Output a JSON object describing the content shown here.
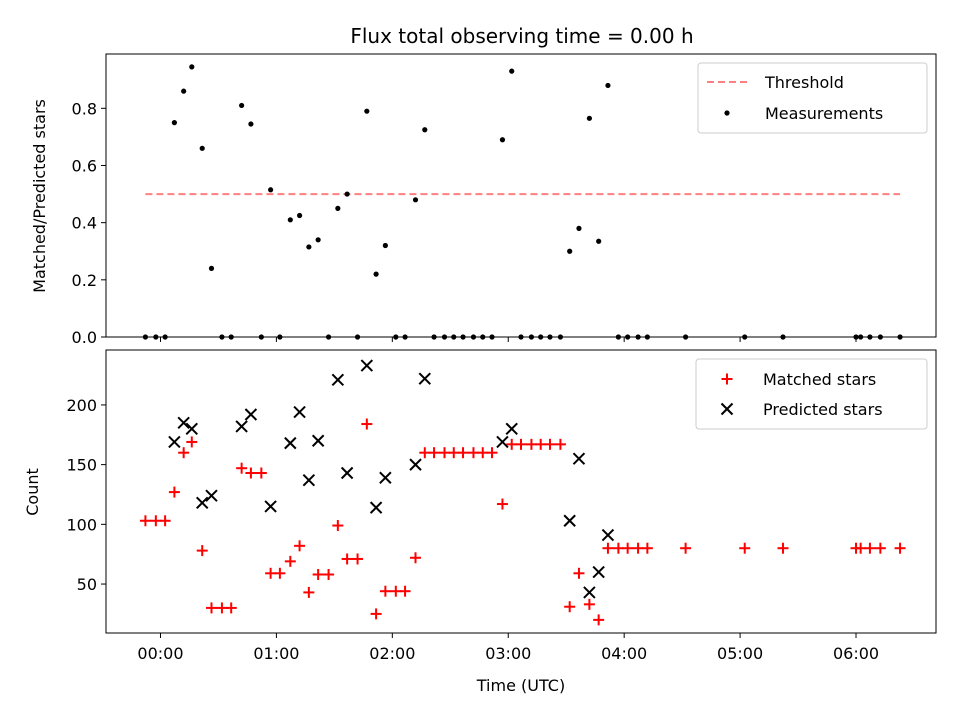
{
  "colors": {
    "threshold": "#ff8080",
    "measurement": "#000000",
    "matched": "#ff0000",
    "predicted": "#000000"
  },
  "chart_data": [
    {
      "type": "scatter",
      "title": "Flux total observing time = 0.00 h",
      "xlabel": "",
      "ylabel": "Matched/Predicted stars",
      "ylim": [
        0,
        0.99
      ],
      "xlim": [
        -0.47,
        6.69
      ],
      "yticks": [
        0.0,
        0.2,
        0.4,
        0.6,
        0.8
      ],
      "ytick_labels": [
        "0.0",
        "0.2",
        "0.4",
        "0.6",
        "0.8"
      ],
      "grid": false,
      "legend_position": "top-right",
      "legend": [
        "Threshold",
        "Measurements"
      ],
      "threshold": {
        "name": "Threshold",
        "x": [
          -0.13,
          6.38
        ],
        "y": 0.5
      },
      "series": [
        {
          "name": "Measurements",
          "x": [
            -0.13,
            -0.04,
            0.04,
            0.12,
            0.2,
            0.27,
            0.36,
            0.44,
            0.53,
            0.61,
            0.7,
            0.78,
            0.87,
            0.95,
            1.03,
            1.12,
            1.2,
            1.28,
            1.36,
            1.45,
            1.53,
            1.61,
            1.7,
            1.78,
            1.86,
            1.94,
            2.03,
            2.11,
            2.2,
            2.28,
            2.36,
            2.45,
            2.53,
            2.61,
            2.7,
            2.78,
            2.86,
            2.95,
            3.03,
            3.11,
            3.2,
            3.28,
            3.36,
            3.45,
            3.53,
            3.61,
            3.7,
            3.78,
            3.86,
            3.95,
            4.03,
            4.12,
            4.2,
            4.53,
            5.04,
            5.37,
            6.0,
            6.04,
            6.12,
            6.21,
            6.38
          ],
          "y": [
            0.0,
            0.0,
            0.0,
            0.75,
            0.86,
            0.945,
            0.66,
            0.24,
            0.0,
            0.0,
            0.81,
            0.745,
            0.0,
            0.515,
            0.0,
            0.41,
            0.425,
            0.315,
            0.34,
            0.0,
            0.45,
            0.5,
            0.0,
            0.79,
            0.22,
            0.32,
            0.0,
            0.0,
            0.48,
            0.725,
            0.0,
            0.0,
            0.0,
            0.0,
            0.0,
            0.0,
            0.0,
            0.69,
            0.93,
            0.0,
            0.0,
            0.0,
            0.0,
            0.0,
            0.3,
            0.38,
            0.765,
            0.335,
            0.88,
            0.0,
            0.0,
            0.0,
            0.0,
            0.0,
            0.0,
            0.0,
            0.0,
            0.0,
            0.0,
            0.0,
            0.0
          ]
        }
      ]
    },
    {
      "type": "scatter",
      "title": "",
      "xlabel": "Time (UTC)",
      "ylabel": "Count",
      "ylim": [
        9,
        246
      ],
      "xlim": [
        -0.47,
        6.69
      ],
      "yticks": [
        50,
        100,
        150,
        200
      ],
      "ytick_labels": [
        "50",
        "100",
        "150",
        "200"
      ],
      "xticks": [
        0,
        1,
        2,
        3,
        4,
        5,
        6
      ],
      "xtick_labels": [
        "00:00",
        "01:00",
        "02:00",
        "03:00",
        "04:00",
        "05:00",
        "06:00"
      ],
      "grid": false,
      "legend_position": "top-right",
      "legend": [
        "Matched stars",
        "Predicted stars"
      ],
      "series": [
        {
          "name": "Matched stars",
          "x": [
            -0.13,
            -0.04,
            0.04,
            0.12,
            0.2,
            0.27,
            0.36,
            0.44,
            0.53,
            0.61,
            0.7,
            0.78,
            0.87,
            0.95,
            1.03,
            1.12,
            1.2,
            1.28,
            1.36,
            1.45,
            1.53,
            1.61,
            1.7,
            1.78,
            1.86,
            1.94,
            2.03,
            2.11,
            2.2,
            2.28,
            2.36,
            2.45,
            2.53,
            2.61,
            2.7,
            2.78,
            2.86,
            2.95,
            3.03,
            3.11,
            3.2,
            3.28,
            3.36,
            3.45,
            3.53,
            3.61,
            3.7,
            3.78,
            3.86,
            3.95,
            4.03,
            4.12,
            4.2,
            4.53,
            5.04,
            5.37,
            6.0,
            6.04,
            6.12,
            6.21,
            6.38
          ],
          "y": [
            103,
            103,
            103,
            127,
            160,
            169,
            78,
            30,
            30,
            30,
            147,
            143,
            143,
            59,
            59,
            69,
            82,
            43,
            58,
            58,
            99,
            71,
            71,
            184,
            25,
            44,
            44,
            44,
            72,
            160,
            160,
            160,
            160,
            160,
            160,
            160,
            160,
            117,
            167,
            167,
            167,
            167,
            167,
            167,
            31,
            59,
            33,
            20,
            80,
            80,
            80,
            80,
            80,
            80,
            80,
            80,
            80,
            80,
            80,
            80,
            80
          ]
        },
        {
          "name": "Predicted stars",
          "x": [
            0.12,
            0.2,
            0.27,
            0.36,
            0.44,
            0.7,
            0.78,
            0.95,
            1.12,
            1.2,
            1.28,
            1.36,
            1.53,
            1.61,
            1.78,
            1.86,
            1.94,
            2.2,
            2.28,
            2.95,
            3.03,
            3.53,
            3.61,
            3.7,
            3.78,
            3.86
          ],
          "y": [
            169,
            185,
            180,
            118,
            124,
            182,
            192,
            115,
            168,
            194,
            137,
            170,
            221,
            143,
            233,
            114,
            139,
            150,
            222,
            169,
            180,
            103,
            155,
            43,
            60,
            91
          ]
        }
      ]
    }
  ]
}
